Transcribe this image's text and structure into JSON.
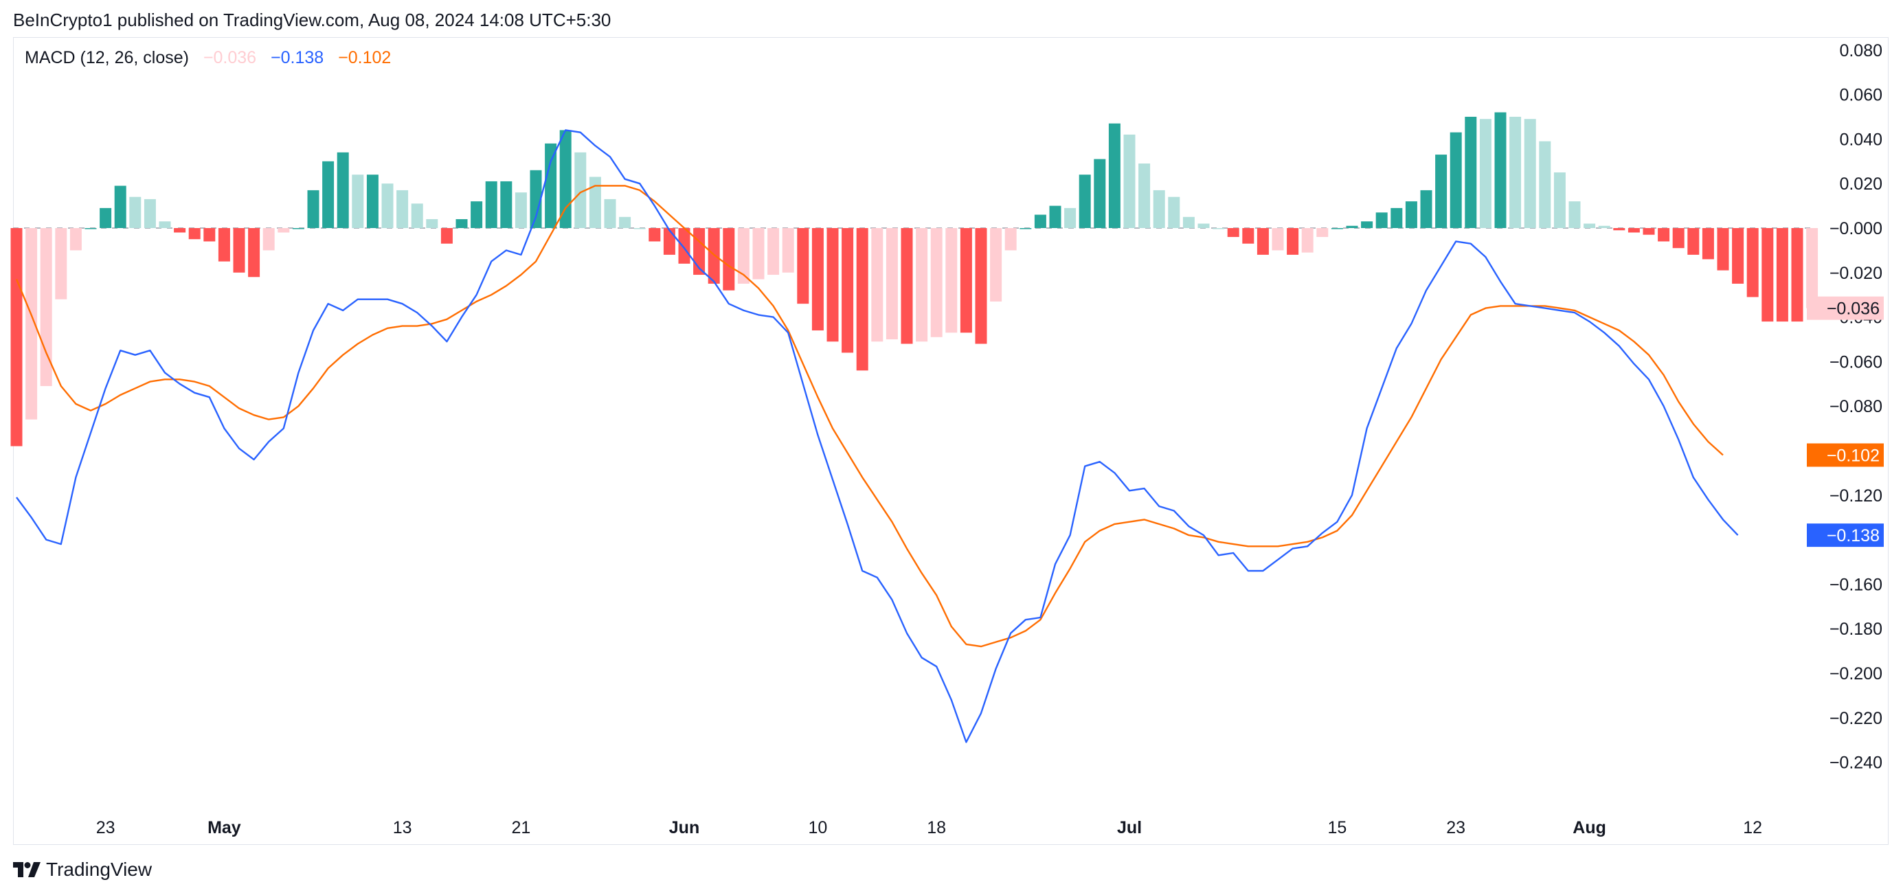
{
  "header": {
    "published_text": "BeInCrypto1 published on TradingView.com, Aug 08, 2024 14:08 UTC+5:30"
  },
  "legend": {
    "indicator": "MACD (12, 26, close)",
    "histogram_value": "−0.036",
    "macd_value": "−0.138",
    "signal_value": "−0.102"
  },
  "footer": {
    "brand": "TradingView",
    "logo_icon": "tradingview-logo-icon"
  },
  "colors": {
    "hist_pos_strong": "#26a69a",
    "hist_pos_weak": "#b2dfdb",
    "hist_neg_strong": "#ff5252",
    "hist_neg_weak": "#ffcdd2",
    "macd_line": "#2962ff",
    "signal_line": "#ff6d00",
    "zero_line": "#b2b5be"
  },
  "chart_data": {
    "type": "bar+line",
    "title": "MACD (12, 26, close)",
    "ylim": [
      -0.26,
      0.085
    ],
    "y_ticks": [
      "0.080",
      "0.060",
      "0.040",
      "0.020",
      "−0.000",
      "−0.020",
      "−0.040",
      "−0.060",
      "−0.080",
      "−0.100",
      "−0.120",
      "−0.140",
      "−0.160",
      "−0.180",
      "−0.200",
      "−0.220",
      "−0.240"
    ],
    "x_ticks": [
      {
        "label": "23",
        "index": 6,
        "bold": false
      },
      {
        "label": "May",
        "index": 14,
        "bold": true
      },
      {
        "label": "13",
        "index": 26,
        "bold": false
      },
      {
        "label": "21",
        "index": 34,
        "bold": false
      },
      {
        "label": "Jun",
        "index": 45,
        "bold": true
      },
      {
        "label": "10",
        "index": 54,
        "bold": false
      },
      {
        "label": "18",
        "index": 62,
        "bold": false
      },
      {
        "label": "Jul",
        "index": 75,
        "bold": true
      },
      {
        "label": "15",
        "index": 89,
        "bold": false
      },
      {
        "label": "23",
        "index": 97,
        "bold": false
      },
      {
        "label": "Aug",
        "index": 106,
        "bold": true
      },
      {
        "label": "12",
        "index": 117,
        "bold": false
      }
    ],
    "value_labels": [
      {
        "name": "histogram",
        "text": "−0.036",
        "value": -0.036
      },
      {
        "name": "signal",
        "text": "−0.102",
        "value": -0.102
      },
      {
        "name": "macd",
        "text": "−0.138",
        "value": -0.138
      }
    ],
    "series": [
      {
        "name": "Histogram",
        "kind": "bar",
        "values": [
          -0.098,
          -0.086,
          -0.071,
          -0.032,
          -0.01,
          0.0,
          0.009,
          0.019,
          0.014,
          0.013,
          0.003,
          -0.002,
          -0.005,
          -0.006,
          -0.015,
          -0.02,
          -0.022,
          -0.01,
          -0.002,
          0.0,
          0.017,
          0.03,
          0.034,
          0.024,
          0.024,
          0.02,
          0.017,
          0.011,
          0.004,
          -0.007,
          0.004,
          0.012,
          0.021,
          0.021,
          0.016,
          0.026,
          0.038,
          0.044,
          0.034,
          0.023,
          0.013,
          0.005,
          0.0,
          -0.006,
          -0.012,
          -0.016,
          -0.021,
          -0.025,
          -0.028,
          -0.025,
          -0.023,
          -0.021,
          -0.02,
          -0.034,
          -0.046,
          -0.051,
          -0.056,
          -0.064,
          -0.051,
          -0.05,
          -0.052,
          -0.051,
          -0.049,
          -0.047,
          -0.047,
          -0.052,
          -0.033,
          -0.01,
          0.0,
          0.006,
          0.01,
          0.009,
          0.024,
          0.031,
          0.047,
          0.042,
          0.029,
          0.017,
          0.014,
          0.005,
          0.002,
          0.0,
          -0.004,
          -0.007,
          -0.012,
          -0.01,
          -0.012,
          -0.011,
          -0.004,
          0.0,
          0.001,
          0.003,
          0.007,
          0.009,
          0.012,
          0.017,
          0.033,
          0.043,
          0.05,
          0.049,
          0.052,
          0.05,
          0.049,
          0.039,
          0.025,
          0.012,
          0.002,
          0.001,
          -0.001,
          -0.002,
          -0.003,
          -0.006,
          -0.009,
          -0.012,
          -0.014,
          -0.019,
          -0.025,
          -0.031,
          -0.042,
          -0.042,
          -0.042,
          -0.036
        ]
      },
      {
        "name": "MACD",
        "kind": "line",
        "values": [
          -0.121,
          -0.13,
          -0.14,
          -0.142,
          -0.112,
          -0.092,
          -0.072,
          -0.055,
          -0.057,
          -0.055,
          -0.065,
          -0.07,
          -0.074,
          -0.076,
          -0.09,
          -0.099,
          -0.104,
          -0.096,
          -0.09,
          -0.065,
          -0.046,
          -0.034,
          -0.037,
          -0.032,
          -0.032,
          -0.032,
          -0.034,
          -0.038,
          -0.044,
          -0.051,
          -0.04,
          -0.03,
          -0.015,
          -0.01,
          -0.012,
          0.005,
          0.03,
          0.044,
          0.043,
          0.037,
          0.032,
          0.022,
          0.02,
          0.01,
          -0.001,
          -0.009,
          -0.018,
          -0.024,
          -0.034,
          -0.037,
          -0.039,
          -0.04,
          -0.047,
          -0.07,
          -0.093,
          -0.113,
          -0.133,
          -0.154,
          -0.157,
          -0.167,
          -0.182,
          -0.193,
          -0.197,
          -0.212,
          -0.231,
          -0.218,
          -0.198,
          -0.182,
          -0.176,
          -0.175,
          -0.151,
          -0.138,
          -0.107,
          -0.105,
          -0.11,
          -0.118,
          -0.117,
          -0.125,
          -0.127,
          -0.134,
          -0.138,
          -0.147,
          -0.146,
          -0.154,
          -0.154,
          -0.149,
          -0.144,
          -0.143,
          -0.137,
          -0.132,
          -0.12,
          -0.09,
          -0.072,
          -0.054,
          -0.043,
          -0.028,
          -0.017,
          -0.006,
          -0.007,
          -0.013,
          -0.024,
          -0.034,
          -0.035,
          -0.036,
          -0.037,
          -0.038,
          -0.042,
          -0.047,
          -0.053,
          -0.061,
          -0.068,
          -0.08,
          -0.095,
          -0.112,
          -0.122,
          -0.131,
          -0.138
        ]
      },
      {
        "name": "Signal",
        "kind": "line",
        "values": [
          -0.023,
          -0.039,
          -0.056,
          -0.071,
          -0.079,
          -0.082,
          -0.079,
          -0.075,
          -0.072,
          -0.069,
          -0.068,
          -0.068,
          -0.069,
          -0.071,
          -0.076,
          -0.081,
          -0.084,
          -0.086,
          -0.085,
          -0.08,
          -0.072,
          -0.063,
          -0.057,
          -0.052,
          -0.048,
          -0.045,
          -0.044,
          -0.044,
          -0.043,
          -0.041,
          -0.037,
          -0.033,
          -0.03,
          -0.026,
          -0.021,
          -0.015,
          -0.003,
          0.009,
          0.016,
          0.019,
          0.019,
          0.019,
          0.017,
          0.012,
          0.006,
          0.0,
          -0.006,
          -0.012,
          -0.017,
          -0.021,
          -0.027,
          -0.035,
          -0.046,
          -0.061,
          -0.076,
          -0.09,
          -0.101,
          -0.112,
          -0.122,
          -0.132,
          -0.144,
          -0.155,
          -0.165,
          -0.179,
          -0.187,
          -0.188,
          -0.186,
          -0.184,
          -0.181,
          -0.176,
          -0.164,
          -0.153,
          -0.141,
          -0.136,
          -0.133,
          -0.132,
          -0.131,
          -0.133,
          -0.135,
          -0.138,
          -0.139,
          -0.141,
          -0.142,
          -0.143,
          -0.143,
          -0.143,
          -0.142,
          -0.141,
          -0.139,
          -0.136,
          -0.129,
          -0.118,
          -0.107,
          -0.096,
          -0.085,
          -0.072,
          -0.059,
          -0.049,
          -0.039,
          -0.036,
          -0.035,
          -0.035,
          -0.035,
          -0.035,
          -0.036,
          -0.037,
          -0.04,
          -0.043,
          -0.046,
          -0.051,
          -0.057,
          -0.066,
          -0.078,
          -0.088,
          -0.096,
          -0.102
        ]
      }
    ]
  }
}
